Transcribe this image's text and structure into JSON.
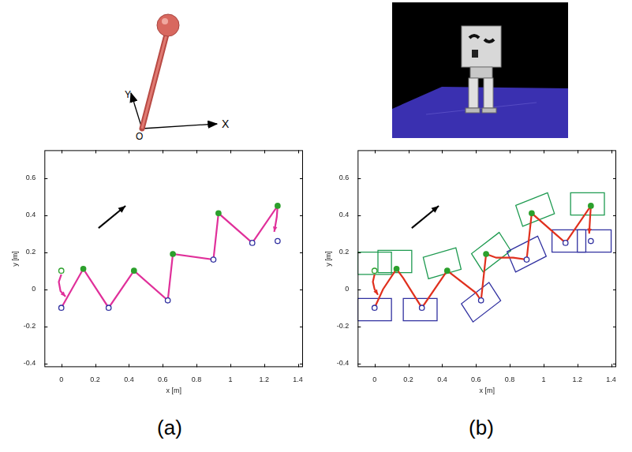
{
  "chart_data": [
    {
      "type": "line",
      "xlabel": "x [m]",
      "ylabel": "y [m]",
      "xlim": [
        -0.1,
        1.43
      ],
      "ylim": [
        -0.42,
        0.75
      ],
      "xticks": [
        0,
        0.2,
        0.4,
        0.6,
        0.8,
        1,
        1.2,
        1.4
      ],
      "yticks": [
        -0.4,
        -0.2,
        0,
        0.2,
        0.4,
        0.6
      ],
      "grid": false,
      "series": [
        {
          "type": "line",
          "color": "#e0309a",
          "line_style": "solid",
          "x": [
            0.0,
            -0.015,
            -0.005,
            0.025,
            0.0,
            0.0,
            0.13,
            0.28,
            0.43,
            0.63,
            0.66,
            0.9,
            0.93,
            1.13,
            1.28,
            1.275,
            1.26
          ],
          "values": [
            0.08,
            0.04,
            -0.01,
            -0.04,
            null,
            -0.1,
            0.11,
            -0.1,
            0.1,
            -0.06,
            0.19,
            0.16,
            0.41,
            0.25,
            0.45,
            0.39,
            0.31
          ]
        },
        {
          "type": "scatter",
          "marker": "ring",
          "color": "#2ca02c",
          "x": [
            0.0
          ],
          "values": [
            0.1
          ]
        },
        {
          "type": "scatter",
          "marker": "circle",
          "color": "#2ca02c",
          "x": [
            0.13,
            0.43,
            0.66,
            0.93,
            1.28
          ],
          "values": [
            0.11,
            0.1,
            0.19,
            0.41,
            0.45
          ]
        },
        {
          "type": "scatter",
          "marker": "ring",
          "color": "#3030a0",
          "x": [
            0.0,
            0.28,
            0.63,
            0.9,
            1.13,
            1.28
          ],
          "values": [
            -0.1,
            -0.1,
            -0.06,
            0.16,
            0.25,
            0.26
          ]
        }
      ],
      "arrow": {
        "from": [
          0.22,
          0.33
        ],
        "to": [
          0.38,
          0.45
        ],
        "color": "#000000"
      }
    },
    {
      "type": "line",
      "xlabel": "x [m]",
      "ylabel": "y [m]",
      "xlim": [
        -0.1,
        1.43
      ],
      "ylim": [
        -0.42,
        0.75
      ],
      "xticks": [
        0,
        0.2,
        0.4,
        0.6,
        0.8,
        1,
        1.2,
        1.4
      ],
      "yticks": [
        -0.4,
        -0.2,
        0,
        0.2,
        0.4,
        0.6
      ],
      "grid": false,
      "series": [
        {
          "type": "line",
          "color": "#e0301e",
          "line_style": "solid",
          "x": [
            0.0,
            -0.01,
            0.0,
            0.02,
            0.0,
            0.0,
            0.05,
            0.13,
            0.17,
            0.28,
            0.43,
            0.6,
            0.63,
            0.66,
            0.72,
            0.82,
            0.9,
            0.93,
            1.13,
            1.28,
            1.275,
            1.27
          ],
          "values": [
            0.08,
            0.04,
            0.0,
            -0.03,
            null,
            -0.1,
            0.0,
            0.11,
            0.06,
            -0.1,
            0.1,
            -0.02,
            -0.06,
            0.19,
            0.17,
            0.17,
            0.16,
            0.41,
            0.25,
            0.45,
            0.38,
            0.3
          ]
        },
        {
          "type": "scatter",
          "marker": "ring",
          "color": "#2ca02c",
          "x": [
            0.0
          ],
          "values": [
            0.1
          ]
        },
        {
          "type": "scatter",
          "marker": "circle",
          "color": "#2ca02c",
          "x": [
            0.13,
            0.43,
            0.66,
            0.93,
            1.28
          ],
          "values": [
            0.11,
            0.1,
            0.19,
            0.41,
            0.45
          ]
        },
        {
          "type": "scatter",
          "marker": "ring",
          "color": "#3030a0",
          "x": [
            0.0,
            0.28,
            0.63,
            0.9,
            1.13,
            1.28
          ],
          "values": [
            -0.1,
            -0.1,
            -0.06,
            0.16,
            0.25,
            0.26
          ]
        }
      ],
      "footprints": [
        {
          "color": "#1e9a50",
          "size": [
            0.2,
            0.12
          ],
          "center_x": [
            0.0,
            0.12,
            0.4,
            0.69,
            0.95,
            1.26
          ],
          "center_y": [
            0.14,
            0.15,
            0.14,
            0.2,
            0.43,
            0.46
          ],
          "heading": [
            0,
            0,
            15,
            35,
            20,
            0
          ]
        },
        {
          "color": "#3030a0",
          "size": [
            0.2,
            0.12
          ],
          "center_x": [
            0.0,
            0.27,
            0.63,
            0.9,
            1.15,
            1.3
          ],
          "center_y": [
            -0.11,
            -0.11,
            -0.07,
            0.19,
            0.26,
            0.26
          ],
          "heading": [
            0,
            0,
            35,
            25,
            0,
            0
          ]
        }
      ],
      "arrow": {
        "from": [
          0.22,
          0.33
        ],
        "to": [
          0.38,
          0.45
        ],
        "color": "#000000"
      }
    }
  ],
  "diagram": {
    "x_axis": "X",
    "y_axis": "Y",
    "origin": "O"
  },
  "panel_labels": [
    "(a)",
    "(b)"
  ]
}
